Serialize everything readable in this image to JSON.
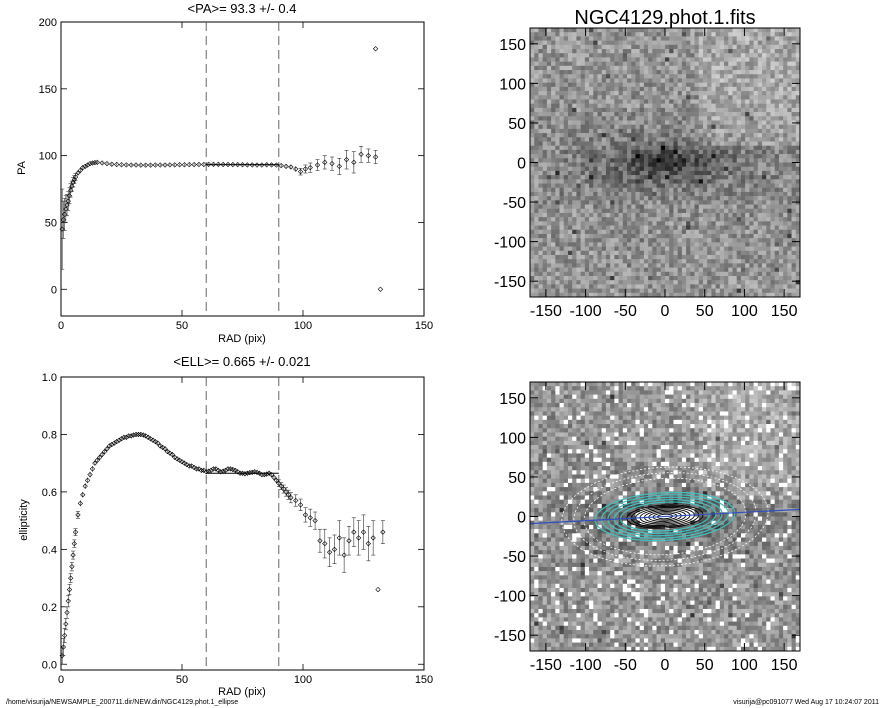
{
  "footer": {
    "path": "/home/visurija/NEWSAMPLE_200711.dir/NEW.dir/NGC4129.phot.1_ellipse",
    "host_time": "visurija@pc091077  Wed Aug 17 10:24:07 2011"
  },
  "chart_data": [
    {
      "type": "scatter",
      "title": "<PA>=  93.3 +/-   0.4",
      "xlabel": "RAD (pix)",
      "ylabel": "PA",
      "xlim": [
        0,
        150
      ],
      "ylim": [
        -20,
        200
      ],
      "xticks": [
        "0",
        "50",
        "100",
        "150"
      ],
      "yticks": [
        "0",
        "50",
        "100",
        "150",
        "200"
      ],
      "xtick_values": [
        0,
        50,
        100,
        150
      ],
      "ytick_values": [
        0,
        50,
        100,
        150,
        200
      ],
      "vlines": [
        60,
        90
      ],
      "hline": {
        "y": 93.3,
        "x": [
          60,
          90
        ]
      },
      "x": [
        0.5,
        1,
        1.5,
        2,
        2.5,
        3,
        3.5,
        4,
        4.5,
        5,
        5.5,
        6,
        7,
        8,
        9,
        10,
        11,
        12,
        13,
        14,
        15,
        17,
        19,
        21,
        23,
        25,
        27,
        29,
        31,
        33,
        35,
        37,
        39,
        41,
        43,
        45,
        47,
        49,
        51,
        53,
        55,
        57,
        59,
        61,
        63,
        65,
        67,
        69,
        71,
        73,
        75,
        77,
        79,
        81,
        83,
        85,
        87,
        89,
        91,
        93,
        95,
        97,
        99,
        101,
        103,
        106,
        109,
        112,
        115,
        118,
        121,
        124,
        127,
        130,
        130,
        132
      ],
      "y": [
        45,
        52,
        56,
        60,
        63,
        66,
        70,
        74,
        77,
        80,
        82,
        84,
        87,
        89,
        91,
        92,
        93,
        94,
        94.5,
        94.8,
        95,
        94.5,
        94,
        93.6,
        93.4,
        93.2,
        93.1,
        93,
        93,
        92.9,
        92.9,
        92.9,
        93,
        93,
        93,
        93.1,
        93.1,
        93.2,
        93.2,
        93.3,
        93.3,
        93.4,
        93.4,
        93.5,
        93.5,
        93.5,
        93.4,
        93.4,
        93.3,
        93.3,
        93.2,
        93.1,
        93.1,
        93,
        93,
        93.2,
        93.1,
        93,
        92.5,
        92,
        91.5,
        90,
        88,
        90,
        91,
        93,
        95,
        94,
        92,
        97,
        95,
        101,
        100,
        99,
        180,
        0
      ],
      "err": [
        30,
        14,
        12,
        10,
        8,
        7,
        6,
        5,
        4,
        3.5,
        3,
        2.5,
        2,
        1.8,
        1.5,
        1.3,
        1.2,
        1,
        1,
        1,
        1,
        0.8,
        0.8,
        0.8,
        0.8,
        0.8,
        0.8,
        0.8,
        0.8,
        0.8,
        0.8,
        0.8,
        0.8,
        0.8,
        0.8,
        0.8,
        0.8,
        0.8,
        0.8,
        0.8,
        0.8,
        0.8,
        0.8,
        0.8,
        0.8,
        0.8,
        0.8,
        0.8,
        0.8,
        0.8,
        0.8,
        0.8,
        0.8,
        0.8,
        0.8,
        0.8,
        0.8,
        0.8,
        1,
        1.2,
        1.5,
        2,
        2.5,
        3,
        3.5,
        4,
        5,
        5,
        6,
        7,
        8,
        6,
        5,
        5,
        0,
        0
      ]
    },
    {
      "type": "scatter",
      "title": "<ELL>= 0.665 +/-  0.021",
      "xlabel": "RAD (pix)",
      "ylabel": "ellipticity",
      "xlim": [
        0,
        150
      ],
      "ylim": [
        -0.02,
        1.0
      ],
      "xticks": [
        "0",
        "50",
        "100",
        "150"
      ],
      "yticks": [
        "0.0",
        "0.2",
        "0.4",
        "0.6",
        "0.8",
        "1.0"
      ],
      "xtick_values": [
        0,
        50,
        100,
        150
      ],
      "ytick_values": [
        0,
        0.2,
        0.4,
        0.6,
        0.8,
        1.0
      ],
      "vlines": [
        60,
        90
      ],
      "hline": {
        "y": 0.665,
        "x": [
          60,
          90
        ]
      },
      "x": [
        0.5,
        1,
        1.5,
        2,
        2.5,
        3,
        3.5,
        4,
        4.5,
        5,
        5.5,
        6,
        7,
        8,
        9,
        10,
        11,
        12,
        13,
        14,
        15,
        16,
        17,
        18,
        19,
        20,
        21,
        22,
        23,
        24,
        25,
        26,
        27,
        28,
        29,
        30,
        31,
        32,
        33,
        34,
        35,
        36,
        37,
        38,
        39,
        40,
        41,
        42,
        43,
        44,
        45,
        46,
        47,
        48,
        49,
        50,
        51,
        52,
        53,
        54,
        55,
        56,
        57,
        58,
        59,
        60,
        61,
        62,
        63,
        64,
        65,
        66,
        67,
        68,
        69,
        70,
        71,
        72,
        73,
        74,
        75,
        76,
        77,
        78,
        79,
        80,
        81,
        82,
        83,
        84,
        85,
        86,
        87,
        88,
        89,
        90,
        91,
        92,
        93,
        94,
        95,
        97,
        99,
        101,
        103,
        105,
        107,
        109,
        111,
        113,
        115,
        117,
        119,
        121,
        123,
        125,
        127,
        129,
        131,
        133
      ],
      "y": [
        0.03,
        0.06,
        0.1,
        0.14,
        0.18,
        0.22,
        0.26,
        0.3,
        0.34,
        0.38,
        0.42,
        0.46,
        0.52,
        0.56,
        0.59,
        0.62,
        0.64,
        0.66,
        0.68,
        0.7,
        0.71,
        0.72,
        0.73,
        0.74,
        0.75,
        0.76,
        0.765,
        0.77,
        0.775,
        0.78,
        0.785,
        0.79,
        0.79,
        0.795,
        0.795,
        0.798,
        0.8,
        0.8,
        0.8,
        0.798,
        0.795,
        0.79,
        0.785,
        0.78,
        0.775,
        0.77,
        0.76,
        0.755,
        0.75,
        0.74,
        0.735,
        0.73,
        0.72,
        0.715,
        0.71,
        0.705,
        0.7,
        0.695,
        0.69,
        0.69,
        0.685,
        0.68,
        0.68,
        0.675,
        0.675,
        0.67,
        0.672,
        0.675,
        0.68,
        0.68,
        0.675,
        0.67,
        0.672,
        0.675,
        0.68,
        0.68,
        0.678,
        0.675,
        0.67,
        0.665,
        0.665,
        0.663,
        0.665,
        0.667,
        0.668,
        0.67,
        0.668,
        0.665,
        0.66,
        0.66,
        0.662,
        0.665,
        0.66,
        0.65,
        0.64,
        0.63,
        0.62,
        0.61,
        0.6,
        0.59,
        0.58,
        0.57,
        0.555,
        0.52,
        0.51,
        0.5,
        0.43,
        0.42,
        0.39,
        0.4,
        0.44,
        0.38,
        0.43,
        0.46,
        0.44,
        0.46,
        0.42,
        0.44,
        0.26,
        0.46
      ],
      "err": [
        0.03,
        0.03,
        0.025,
        0.02,
        0.02,
        0.02,
        0.018,
        0.016,
        0.015,
        0.014,
        0.013,
        0.012,
        0.012,
        0.01,
        0.01,
        0.01,
        0.01,
        0.01,
        0.01,
        0.008,
        0.008,
        0.008,
        0.008,
        0.008,
        0.008,
        0.008,
        0.008,
        0.008,
        0.008,
        0.008,
        0.008,
        0.008,
        0.008,
        0.008,
        0.008,
        0.008,
        0.008,
        0.008,
        0.008,
        0.008,
        0.008,
        0.008,
        0.008,
        0.008,
        0.008,
        0.008,
        0.008,
        0.008,
        0.008,
        0.008,
        0.008,
        0.008,
        0.008,
        0.008,
        0.008,
        0.008,
        0.008,
        0.008,
        0.008,
        0.008,
        0.008,
        0.008,
        0.008,
        0.008,
        0.008,
        0.008,
        0.008,
        0.008,
        0.008,
        0.008,
        0.008,
        0.008,
        0.008,
        0.008,
        0.008,
        0.008,
        0.008,
        0.008,
        0.008,
        0.008,
        0.008,
        0.008,
        0.008,
        0.008,
        0.008,
        0.008,
        0.008,
        0.008,
        0.008,
        0.008,
        0.008,
        0.008,
        0.008,
        0.01,
        0.01,
        0.012,
        0.012,
        0.014,
        0.015,
        0.016,
        0.018,
        0.02,
        0.02,
        0.025,
        0.03,
        0.03,
        0.04,
        0.05,
        0.05,
        0.05,
        0.06,
        0.06,
        0.05,
        0.05,
        0.06,
        0.06,
        0.06,
        0.06,
        0,
        0.04
      ]
    },
    {
      "type": "heatmap",
      "title": "NGC4129.phot.1.fits",
      "xlim": [
        -170,
        170
      ],
      "ylim": [
        -170,
        170
      ],
      "xticks": [
        "-150",
        "-100",
        "-50",
        "0",
        "50",
        "100",
        "150"
      ],
      "yticks": [
        "-150",
        "-100",
        "-50",
        "0",
        "50",
        "100",
        "150"
      ],
      "xtick_values": [
        -150,
        -100,
        -50,
        0,
        50,
        100,
        150
      ],
      "ytick_values": [
        -150,
        -100,
        -50,
        0,
        50,
        100,
        150
      ],
      "colormap": "grayscale"
    },
    {
      "type": "heatmap",
      "title": "",
      "xlim": [
        -170,
        170
      ],
      "ylim": [
        -170,
        170
      ],
      "xticks": [
        "-150",
        "-100",
        "-50",
        "0",
        "50",
        "100",
        "150"
      ],
      "yticks": [
        "-150",
        "-100",
        "-50",
        "0",
        "50",
        "100",
        "150"
      ],
      "xtick_values": [
        -150,
        -100,
        -50,
        0,
        50,
        100,
        150
      ],
      "ytick_values": [
        -150,
        -100,
        -50,
        0,
        50,
        100,
        150
      ],
      "colormap": "grayscale",
      "overlays": [
        "masked pixels (white)",
        "ellipse isophotes",
        "major axis line"
      ],
      "colors": {
        "isophote": "#40c0c0",
        "outer_isophote": "#ffffff",
        "axis_line": "#3050c0",
        "mask": "#ffffff"
      }
    }
  ]
}
